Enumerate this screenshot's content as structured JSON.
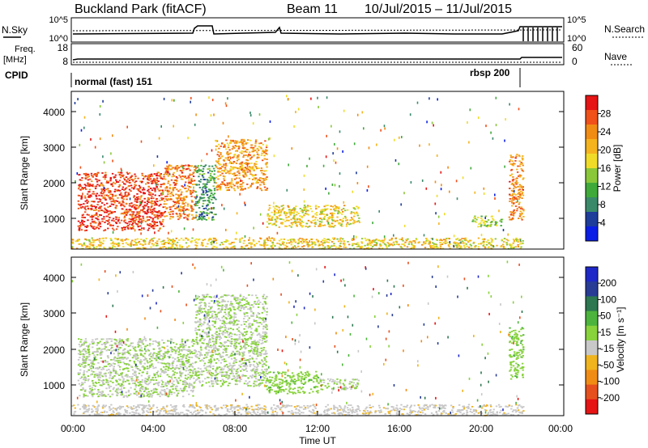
{
  "header": {
    "site": "Buckland Park (fitACF)",
    "beam": "Beam 11",
    "dates": "10/Jul/2015 – 11/Jul/2015"
  },
  "noise_panel": {
    "left_label": "N.Sky",
    "right_label": "N.Search",
    "left_ticks": [
      "10^5",
      "10^0"
    ],
    "right_ticks": [
      "10^5",
      "10^0"
    ]
  },
  "freq_panel": {
    "left_label_1": "Freq.",
    "left_label_2": "[MHz]",
    "left_ticks": [
      "18",
      "8"
    ],
    "right_label": "Nave",
    "right_ticks": [
      "60",
      "0"
    ]
  },
  "cpid_panel": {
    "label": "CPID",
    "segments": [
      "normal (fast) 151",
      "rbsp 200"
    ]
  },
  "x_axis": {
    "label": "Time UT",
    "ticks": [
      "00:00",
      "04:00",
      "08:00",
      "12:00",
      "16:00",
      "20:00",
      "00:00"
    ]
  },
  "power_panel": {
    "ylabel": "Slant Range [km]",
    "yticks": [
      "1000",
      "2000",
      "3000",
      "4000"
    ],
    "colorbar_label": "Power [dB]",
    "colorbar_ticks": [
      "4",
      "8",
      "12",
      "16",
      "20",
      "24",
      "28"
    ],
    "colors": [
      "#0a1ee6",
      "#1e3c9a",
      "#3a8a6a",
      "#3faa3a",
      "#8ac83a",
      "#f0dc28",
      "#f5b41e",
      "#f08c14",
      "#f0501a",
      "#e61414"
    ]
  },
  "velocity_panel": {
    "ylabel": "Slant Range [km]",
    "yticks": [
      "1000",
      "2000",
      "3000",
      "4000"
    ],
    "colorbar_label": "Velocity [m s⁻¹]",
    "colorbar_ticks": [
      "200",
      "100",
      "50",
      "15",
      "-15",
      "-50",
      "-100",
      "-200"
    ],
    "colors": [
      "#1e28c8",
      "#283c96",
      "#2d7850",
      "#4cb43c",
      "#88d23c",
      "#c8c8c8",
      "#f0b41e",
      "#f08c14",
      "#e6501e",
      "#e61414"
    ]
  },
  "chart_data": [
    {
      "type": "heatmap",
      "title": "Power [dB]",
      "xlabel": "Time UT",
      "ylabel": "Slant Range [km]",
      "x_range": [
        "10/Jul/2015 00:00",
        "11/Jul/2015 00:00"
      ],
      "ylim": [
        180,
        4500
      ],
      "z_range": [
        0,
        30
      ],
      "regions": [
        {
          "t_start": 0.3,
          "t_end": 4.5,
          "range_km": [
            700,
            2300
          ],
          "power_db": 28
        },
        {
          "t_start": 4.5,
          "t_end": 6.0,
          "range_km": [
            1000,
            2500
          ],
          "power_db": 24
        },
        {
          "t_start": 6.0,
          "t_end": 7.0,
          "range_km": [
            1000,
            2500
          ],
          "power_db": 8
        },
        {
          "t_start": 7.0,
          "t_end": 9.5,
          "range_km": [
            1800,
            3200
          ],
          "power_db": 22
        },
        {
          "t_start": 9.5,
          "t_end": 14.0,
          "range_km": [
            800,
            1400
          ],
          "power_db": 18
        },
        {
          "t_start": 19.5,
          "t_end": 21.0,
          "range_km": [
            800,
            1100
          ],
          "power_db": 14
        },
        {
          "t_start": 21.3,
          "t_end": 22.0,
          "range_km": [
            1000,
            2800
          ],
          "power_db": 24
        },
        {
          "t_start": 0.0,
          "t_end": 22.0,
          "range_km": [
            200,
            500
          ],
          "power_db": 18
        }
      ]
    },
    {
      "type": "heatmap",
      "title": "Velocity [m s⁻¹]",
      "xlabel": "Time UT",
      "ylabel": "Slant Range [km]",
      "x_range": [
        "10/Jul/2015 00:00",
        "11/Jul/2015 00:00"
      ],
      "ylim": [
        180,
        4500
      ],
      "z_range": [
        -200,
        200
      ],
      "regions": [
        {
          "t_start": 0.3,
          "t_end": 6.0,
          "range_km": [
            700,
            2300
          ],
          "velocity_ms": 0
        },
        {
          "t_start": 6.0,
          "t_end": 9.5,
          "range_km": [
            1000,
            3500
          ],
          "velocity_ms": 0
        },
        {
          "t_start": 9.5,
          "t_end": 12.0,
          "range_km": [
            800,
            1400
          ],
          "velocity_ms": 30
        },
        {
          "t_start": 12.0,
          "t_end": 14.0,
          "range_km": [
            900,
            1200
          ],
          "velocity_ms": 0
        },
        {
          "t_start": 21.3,
          "t_end": 22.0,
          "range_km": [
            1200,
            2600
          ],
          "velocity_ms": 30
        },
        {
          "t_start": 0.0,
          "t_end": 22.0,
          "range_km": [
            200,
            500
          ],
          "velocity_ms": -30
        }
      ]
    }
  ]
}
